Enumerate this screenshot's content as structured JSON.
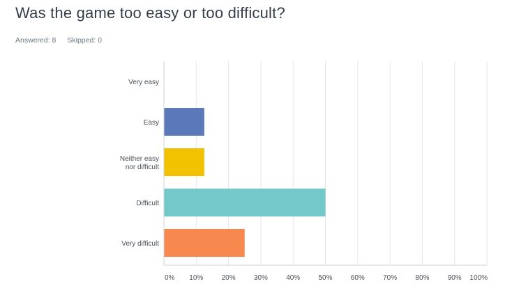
{
  "question": {
    "title": "Was the game too easy or too difficult?",
    "answered_label": "Answered: 8",
    "skipped_label": "Skipped: 0"
  },
  "chart_data": {
    "type": "bar",
    "orientation": "horizontal",
    "categories": [
      [
        "Very easy"
      ],
      [
        "Easy"
      ],
      [
        "Neither easy",
        "nor difficult"
      ],
      [
        "Difficult"
      ],
      [
        "Very difficult"
      ]
    ],
    "values": [
      0,
      12.5,
      12.5,
      50,
      25
    ],
    "colors": [
      "#5b79b9",
      "#5b79b9",
      "#f2c200",
      "#73c8c9",
      "#f7894f"
    ],
    "xlim": [
      0,
      100
    ],
    "xticks": [
      "0%",
      "10%",
      "20%",
      "30%",
      "40%",
      "50%",
      "60%",
      "70%",
      "80%",
      "90%",
      "100%"
    ],
    "grid": true,
    "gridColor": "#e4e6e8",
    "axisColor": "#cfd3d6"
  }
}
